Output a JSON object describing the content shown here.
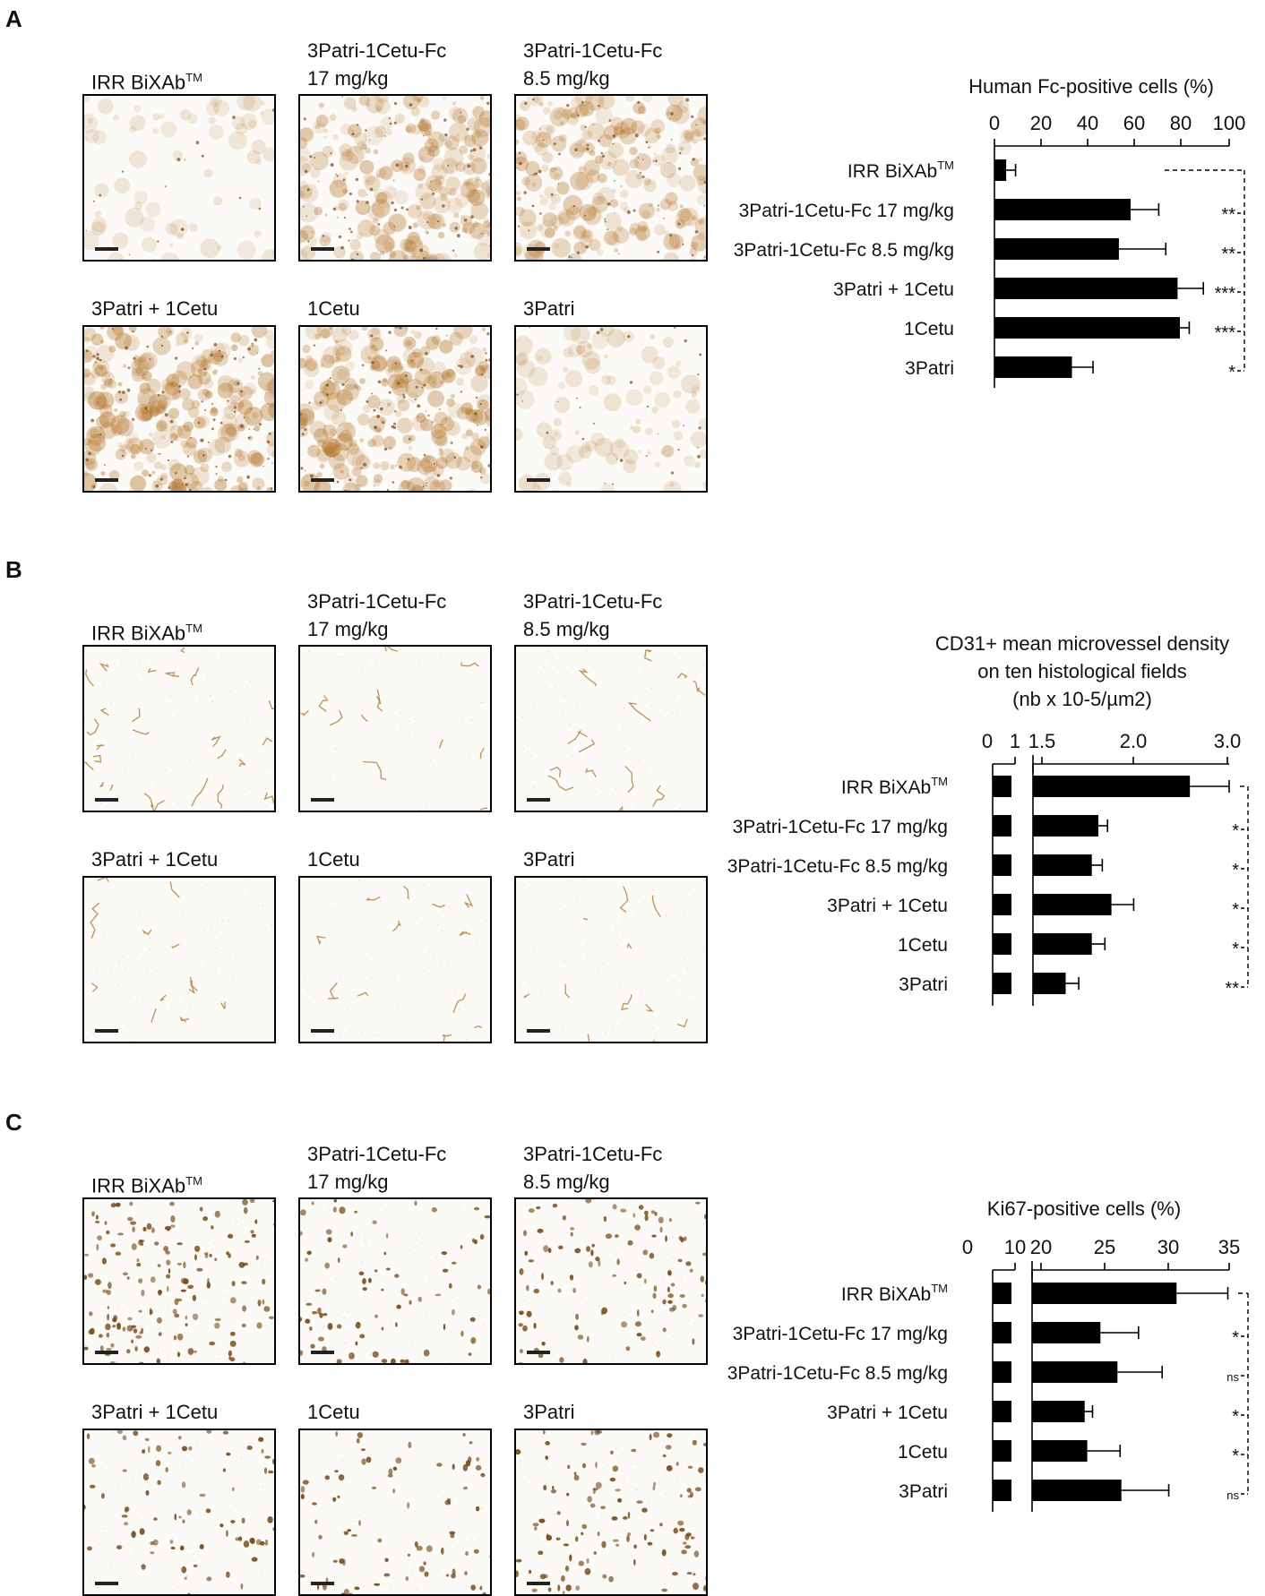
{
  "panels": [
    {
      "id": "A",
      "letter": "A",
      "images": [
        {
          "label_line1": "IRR BiXAb",
          "label_sup": "TM",
          "label_line2": "",
          "stain": "diffuse",
          "intensity": 0.15
        },
        {
          "label_line1": "3Patri-1Cetu-Fc",
          "label_sup": "",
          "label_line2": "17 mg/kg",
          "stain": "diffuse",
          "intensity": 0.75
        },
        {
          "label_line1": "3Patri-1Cetu-Fc",
          "label_sup": "",
          "label_line2": "8.5 mg/kg",
          "stain": "diffuse",
          "intensity": 0.7
        },
        {
          "label_line1": "3Patri + 1Cetu",
          "label_sup": "",
          "label_line2": "",
          "stain": "diffuse",
          "intensity": 0.9
        },
        {
          "label_line1": "1Cetu",
          "label_sup": "",
          "label_line2": "",
          "stain": "diffuse",
          "intensity": 0.85
        },
        {
          "label_line1": "3Patri",
          "label_sup": "",
          "label_line2": "",
          "stain": "diffuse",
          "intensity": 0.25
        }
      ]
    },
    {
      "id": "B",
      "letter": "B",
      "images": [
        {
          "label_line1": "IRR BiXAb",
          "label_sup": "TM",
          "label_line2": "",
          "stain": "vessels",
          "intensity": 0.5
        },
        {
          "label_line1": "3Patri-1Cetu-Fc",
          "label_sup": "",
          "label_line2": "17 mg/kg",
          "stain": "vessels",
          "intensity": 0.15
        },
        {
          "label_line1": "3Patri-1Cetu-Fc",
          "label_sup": "",
          "label_line2": "8.5 mg/kg",
          "stain": "vessels",
          "intensity": 0.2
        },
        {
          "label_line1": "3Patri + 1Cetu",
          "label_sup": "",
          "label_line2": "",
          "stain": "vessels",
          "intensity": 0.15
        },
        {
          "label_line1": "1Cetu",
          "label_sup": "",
          "label_line2": "",
          "stain": "vessels",
          "intensity": 0.15
        },
        {
          "label_line1": "3Patri",
          "label_sup": "",
          "label_line2": "",
          "stain": "vessels",
          "intensity": 0.12
        }
      ]
    },
    {
      "id": "C",
      "letter": "C",
      "images": [
        {
          "label_line1": "IRR BiXAb",
          "label_sup": "TM",
          "label_line2": "",
          "stain": "nuclei",
          "intensity": 0.9
        },
        {
          "label_line1": "3Patri-1Cetu-Fc",
          "label_sup": "",
          "label_line2": "17 mg/kg",
          "stain": "nuclei",
          "intensity": 0.35
        },
        {
          "label_line1": "3Patri-1Cetu-Fc",
          "label_sup": "",
          "label_line2": "8.5 mg/kg",
          "stain": "nuclei",
          "intensity": 0.55
        },
        {
          "label_line1": "3Patri + 1Cetu",
          "label_sup": "",
          "label_line2": "",
          "stain": "nuclei",
          "intensity": 0.35
        },
        {
          "label_line1": "1Cetu",
          "label_sup": "",
          "label_line2": "",
          "stain": "nuclei",
          "intensity": 0.35
        },
        {
          "label_line1": "3Patri",
          "label_sup": "",
          "label_line2": "",
          "stain": "nuclei",
          "intensity": 0.6
        }
      ]
    }
  ],
  "colors": {
    "bar": "#000000",
    "stain": "#b5762a",
    "stain_dark": "#7a4a14",
    "frame": "#000000"
  },
  "chart_data": [
    {
      "type": "bar",
      "orientation": "horizontal",
      "title": [
        "Human Fc-positive cells (%)"
      ],
      "xlim": [
        0,
        100
      ],
      "xticks": [
        "0",
        "20",
        "40",
        "60",
        "80",
        "100"
      ],
      "categories": [
        "IRR BiXAb",
        "3Patri-1Cetu-Fc 17 mg/kg",
        "3Patri-1Cetu-Fc 8.5 mg/kg",
        "3Patri + 1Cetu",
        "1Cetu",
        "3Patri"
      ],
      "category_sup": [
        "TM",
        "",
        "",
        "",
        "",
        ""
      ],
      "values": [
        5,
        58,
        53,
        78,
        79,
        33
      ],
      "errors": [
        4,
        12,
        20,
        11,
        4,
        9
      ],
      "significance": [
        "",
        "**",
        "**",
        "***",
        "***",
        "*"
      ],
      "bracket": "dashed vs IRR BiXAb"
    },
    {
      "type": "bar",
      "orientation": "horizontal",
      "title": [
        "CD31+ mean microvessel density",
        "on ten histological fields",
        "(nb x 10-5/µm2)"
      ],
      "axis_break": true,
      "xticks": [
        "0",
        "1",
        "1.5",
        "2.0",
        "3.0"
      ],
      "categories": [
        "IRR BiXAb",
        "3Patri-1Cetu-Fc 17 mg/kg",
        "3Patri-1Cetu-Fc 8.5 mg/kg",
        "3Patri + 1Cetu",
        "1Cetu",
        "3Patri"
      ],
      "category_sup": [
        "TM",
        "",
        "",
        "",
        "",
        ""
      ],
      "values": [
        2.7,
        2.0,
        1.95,
        2.1,
        1.95,
        1.75
      ],
      "errors": [
        0.3,
        0.07,
        0.08,
        0.17,
        0.1,
        0.1
      ],
      "significance": [
        "",
        "*",
        "*",
        "*",
        "*",
        "**"
      ],
      "bracket": "dashed vs IRR BiXAb"
    },
    {
      "type": "bar",
      "orientation": "horizontal",
      "title": [
        "Ki67-positive cells (%)"
      ],
      "axis_break": true,
      "xlim": [
        20,
        35
      ],
      "xticks": [
        "0",
        "10",
        "20",
        "25",
        "30",
        "35"
      ],
      "categories": [
        "IRR BiXAb",
        "3Patri-1Cetu-Fc 17 mg/kg",
        "3Patri-1Cetu-Fc 8.5 mg/kg",
        "3Patri + 1Cetu",
        "1Cetu",
        "3Patri"
      ],
      "category_sup": [
        "TM",
        "",
        "",
        "",
        "",
        ""
      ],
      "values": [
        31,
        25.2,
        26.5,
        24,
        24.2,
        26.8
      ],
      "errors": [
        3.9,
        2.9,
        3.4,
        0.6,
        2.5,
        3.6
      ],
      "significance": [
        "",
        "*",
        "ns",
        "*",
        "*",
        "ns"
      ],
      "bracket": "dashed vs IRR BiXAb"
    }
  ]
}
